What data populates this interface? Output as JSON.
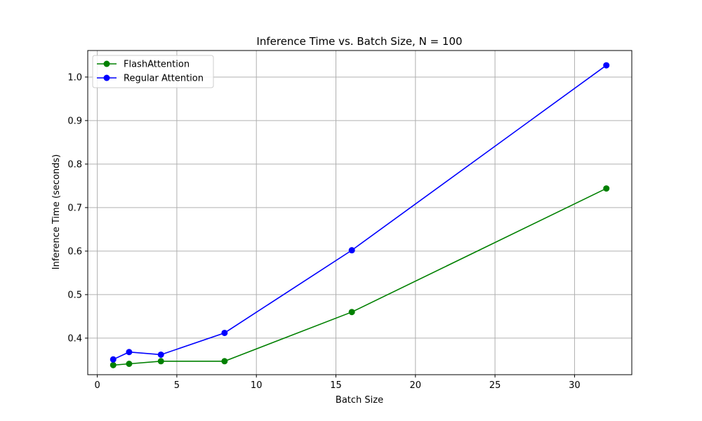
{
  "chart_data": {
    "type": "line",
    "title": "Inference Time vs. Batch Size, N = 100",
    "xlabel": "Batch Size",
    "ylabel": "Inference Time (seconds)",
    "xlim": [
      -0.6,
      33.6
    ],
    "ylim": [
      0.316,
      1.061
    ],
    "xticks": [
      0,
      5,
      10,
      15,
      20,
      25,
      30
    ],
    "yticks": [
      0.4,
      0.5,
      0.6,
      0.7,
      0.8,
      0.9,
      1.0
    ],
    "xtick_labels": [
      "0",
      "5",
      "10",
      "15",
      "20",
      "25",
      "30"
    ],
    "ytick_labels": [
      "0.4",
      "0.5",
      "0.6",
      "0.7",
      "0.8",
      "0.9",
      "1.0"
    ],
    "grid": true,
    "legend_position": "top-left",
    "marker": "circle",
    "series": [
      {
        "name": "FlashAttention",
        "color": "#008000",
        "x": [
          1,
          2,
          4,
          8,
          16,
          32
        ],
        "y": [
          0.338,
          0.341,
          0.347,
          0.347,
          0.46,
          0.744
        ]
      },
      {
        "name": "Regular Attention",
        "color": "#0000ff",
        "x": [
          1,
          2,
          4,
          8,
          16,
          32
        ],
        "y": [
          0.351,
          0.368,
          0.362,
          0.412,
          0.602,
          1.027
        ]
      }
    ]
  }
}
